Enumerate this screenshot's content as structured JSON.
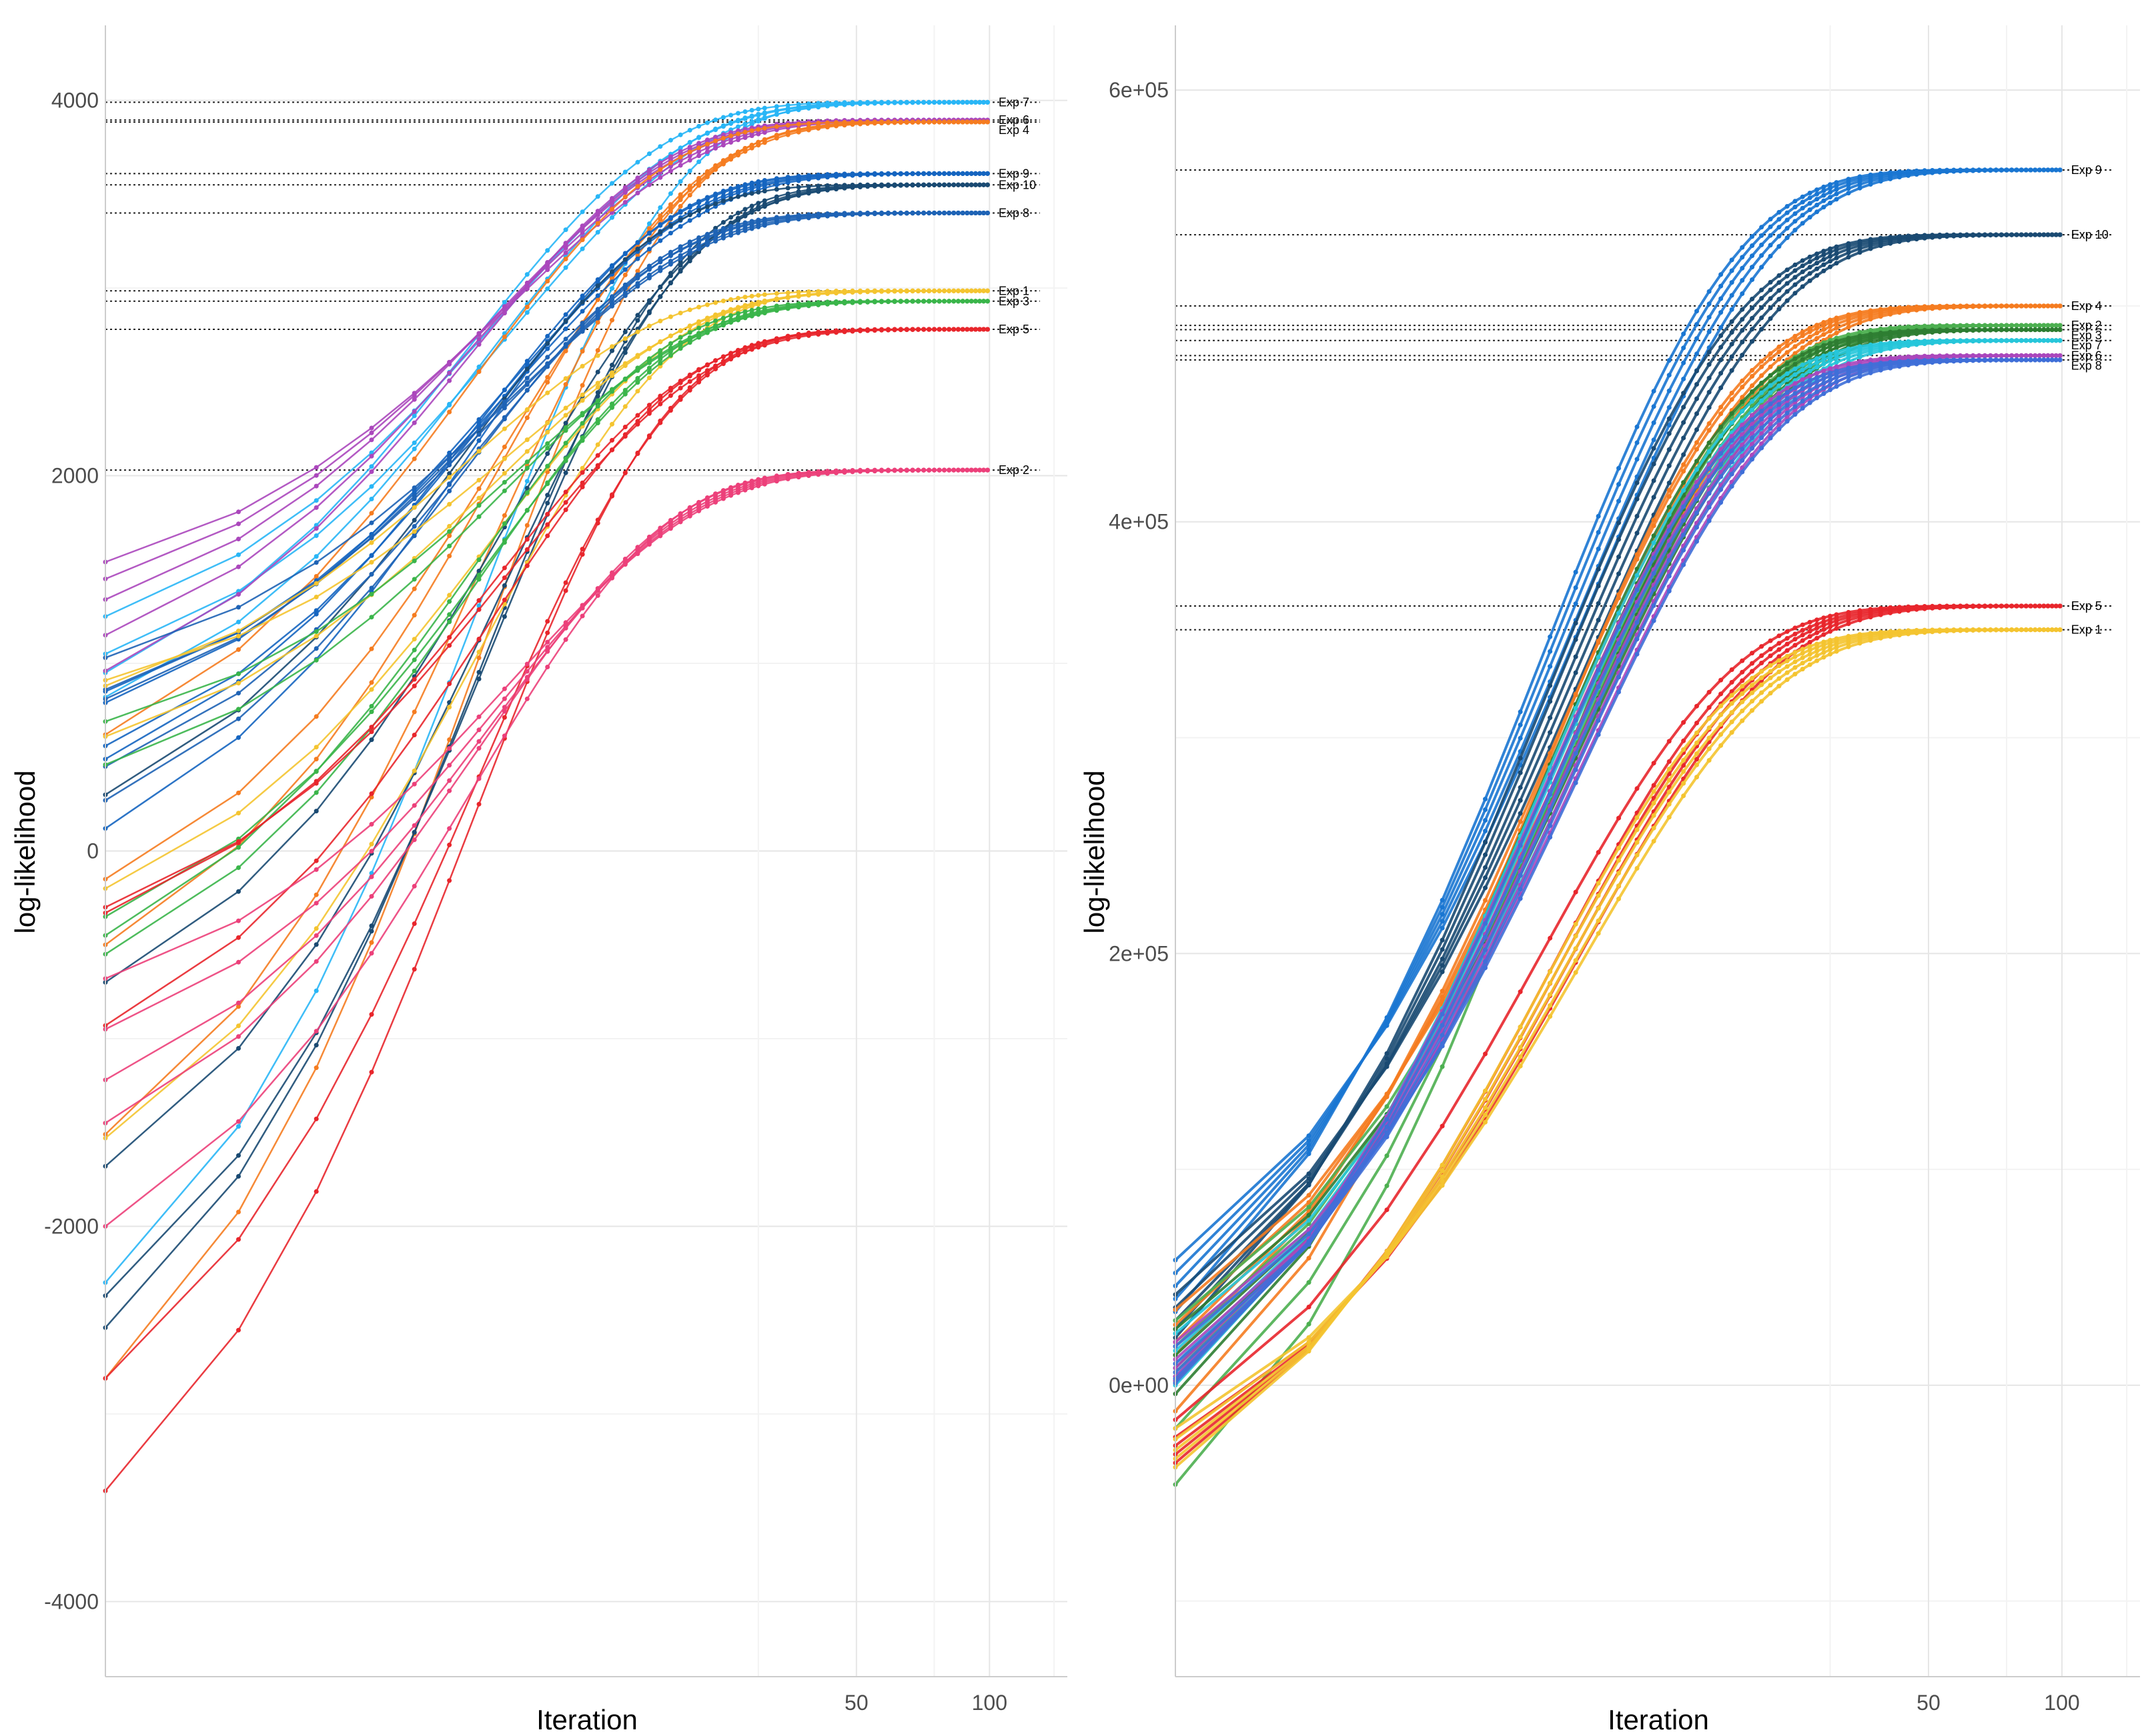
{
  "chart_data": [
    {
      "type": "line",
      "panel": "left",
      "xlabel": "Iteration",
      "ylabel": "log-likelihood",
      "x_scale": "log",
      "xlim": [
        1,
        150
      ],
      "x_ticks": [
        {
          "value": 50,
          "label": "50"
        },
        {
          "value": 100,
          "label": "100"
        }
      ],
      "ylim": [
        -4400,
        4400
      ],
      "y_ticks": [
        {
          "value": 4000,
          "label": "4000"
        },
        {
          "value": 2000,
          "label": "2000"
        },
        {
          "value": 0,
          "label": "0"
        },
        {
          "value": -2000,
          "label": "-2000"
        },
        {
          "value": -4000,
          "label": "-4000"
        }
      ],
      "grid": true,
      "runs_per_experiment": 5,
      "series": [
        {
          "name": "Exp 7",
          "color": "#29b6f6",
          "final": 3990,
          "starts": [
            1050,
            1250,
            820,
            -2300,
            950
          ]
        },
        {
          "name": "Exp 6",
          "color": "#ab47bc",
          "final": 3895,
          "starts": [
            1540,
            1450,
            1340,
            1150,
            960
          ]
        },
        {
          "name": "Exp 4",
          "color": "#f57c20",
          "final": 3885,
          "starts": [
            -150,
            -500,
            -1510,
            -2810,
            620
          ]
        },
        {
          "name": "Exp 9",
          "color": "#1565c0",
          "final": 3610,
          "starts": [
            850,
            790,
            560,
            490,
            120
          ]
        },
        {
          "name": "Exp 10",
          "color": "#1a4a72",
          "final": 3550,
          "starts": [
            -700,
            -1680,
            -2370,
            -2540,
            300
          ]
        },
        {
          "name": "Exp 8",
          "color": "#1e63b5",
          "final": 3400,
          "starts": [
            1030,
            860,
            810,
            450,
            270
          ]
        },
        {
          "name": "Exp 1",
          "color": "#f4c430",
          "final": 2985,
          "starts": [
            910,
            610,
            -200,
            -1530,
            880
          ]
        },
        {
          "name": "Exp 3",
          "color": "#3ab54a",
          "final": 2930,
          "starts": [
            690,
            460,
            -350,
            -550,
            -450
          ]
        },
        {
          "name": "Exp 5",
          "color": "#e8262c",
          "final": 2780,
          "starts": [
            -300,
            -330,
            -930,
            -2810,
            -3410
          ]
        },
        {
          "name": "Exp 2",
          "color": "#ec407a",
          "final": 2030,
          "starts": [
            -680,
            -950,
            -1220,
            -1450,
            -2000
          ]
        }
      ]
    },
    {
      "type": "line",
      "panel": "right",
      "xlabel": "Iteration",
      "ylabel": "log-likelihood",
      "x_scale": "log",
      "xlim": [
        1,
        150
      ],
      "x_ticks": [
        {
          "value": 50,
          "label": "50"
        },
        {
          "value": 100,
          "label": "100"
        }
      ],
      "ylim": [
        -135000,
        630000
      ],
      "y_ticks": [
        {
          "value": 600000,
          "label": "6e+05"
        },
        {
          "value": 400000,
          "label": "4e+05"
        },
        {
          "value": 200000,
          "label": "2e+05"
        },
        {
          "value": 0,
          "label": "0e+00"
        }
      ],
      "grid": true,
      "runs_per_experiment": 5,
      "series": [
        {
          "name": "Exp 9",
          "color": "#1976d2",
          "final": 563000,
          "starts": [
            58000,
            52000,
            46000,
            40000,
            34000
          ]
        },
        {
          "name": "Exp 10",
          "color": "#1a4a72",
          "final": 533000,
          "starts": [
            42000,
            36000,
            30000,
            26000,
            22000
          ]
        },
        {
          "name": "Exp 4",
          "color": "#f57c20",
          "final": 500000,
          "starts": [
            35000,
            28000,
            20000,
            14000,
            -12000
          ]
        },
        {
          "name": "Exp 2",
          "color": "#4caf50",
          "final": 491000,
          "starts": [
            30000,
            18000,
            6000,
            -20000,
            -46000
          ]
        },
        {
          "name": "Exp 3",
          "color": "#2e7d32",
          "final": 489000,
          "starts": [
            26000,
            14000,
            8000,
            2000,
            -4000
          ]
        },
        {
          "name": "Exp 7",
          "color": "#26c6da",
          "final": 484000,
          "starts": [
            24000,
            16000,
            10000,
            4000,
            0
          ]
        },
        {
          "name": "Exp 6",
          "color": "#ab47bc",
          "final": 477000,
          "starts": [
            20000,
            12000,
            8000,
            4000,
            2000
          ]
        },
        {
          "name": "Exp 8",
          "color": "#3f6fd8",
          "final": 475000,
          "starts": [
            18000,
            10000,
            6000,
            3000,
            1000
          ]
        },
        {
          "name": "Exp 5",
          "color": "#e8262c",
          "final": 361000,
          "starts": [
            -24000,
            -28000,
            -32000,
            -36000,
            -16000
          ]
        },
        {
          "name": "Exp 1",
          "color": "#f4c430",
          "final": 350000,
          "starts": [
            -20000,
            -25000,
            -30000,
            -34000,
            -38000
          ]
        }
      ]
    }
  ]
}
